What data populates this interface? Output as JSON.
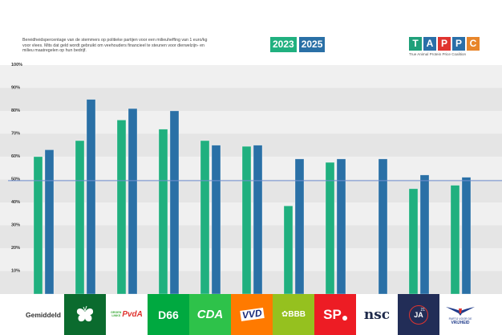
{
  "description": "Bereidheidspercentage van de stemmers op politieke partijen voor een milieuheffing van 1 euro/kg voor vlees. Mits dat geld wordt gebruikt om veehouders financieel te steunen voor dierwelzijn- en milieu maatregelen op hun bedrijf.",
  "brand": {
    "letters": [
      "T",
      "A",
      "P",
      "P",
      "C"
    ],
    "letter_colors": [
      "#20a07a",
      "#2a6fa8",
      "#e0342f",
      "#2a6fa8",
      "#e8862b"
    ],
    "subtitle": "True Animal Protein Price Coalition"
  },
  "logos": [
    {
      "name": "Gemiddeld",
      "label": "Gemiddeld",
      "bg": "#ffffff",
      "fg": "#333333"
    },
    {
      "name": "ChristenUnie",
      "label": "",
      "bg": "#0b6b2e",
      "fg": "#ffffff"
    },
    {
      "name": "GroenLinks-PvdA",
      "label_top": "GROEN",
      "label_bottom": "LINKS",
      "label_right": "PvdA",
      "bg": "#ffffff",
      "fg": "#e0342f"
    },
    {
      "name": "D66",
      "label": "D66",
      "bg": "#00a940",
      "fg": "#ffffff"
    },
    {
      "name": "CDA",
      "label": "CDA",
      "bg": "#2ec24a",
      "fg": "#ffffff"
    },
    {
      "name": "VVD",
      "label": "VVD",
      "bg": "#ff7a00",
      "fg": "#1a2b7a"
    },
    {
      "name": "BBB",
      "label": "BBB",
      "bg": "#95c11f",
      "fg": "#ffffff"
    },
    {
      "name": "SP",
      "label": "SP",
      "bg": "#ed1c24",
      "fg": "#ffffff"
    },
    {
      "name": "NSC",
      "label": "nsc",
      "bg": "#ffffff",
      "fg": "#1e2a4a"
    },
    {
      "name": "JA21",
      "label": "JA",
      "sup": "21",
      "bg": "#222d57",
      "fg": "#ffffff"
    },
    {
      "name": "PVV",
      "label_top": "PARTIJ VOOR DE",
      "label_bottom": "VRIJHEID",
      "bg": "#ffffff",
      "fg": "#1e3a8a"
    }
  ],
  "chart_data": {
    "type": "bar",
    "title": "",
    "xlabel": "",
    "ylabel": "",
    "ylim": [
      0,
      100
    ],
    "yticks": [
      "10%",
      "20%",
      "30%",
      "40%",
      "50%",
      "60%",
      "70%",
      "80%",
      "90%",
      "100%"
    ],
    "categories": [
      "Gemiddeld",
      "ChristenUnie",
      "GroenLinks-PvdA",
      "D66",
      "CDA",
      "VVD",
      "BBB",
      "SP",
      "NSC",
      "JA21",
      "PVV"
    ],
    "series": [
      {
        "name": "2023",
        "color": "#20b07f",
        "values": [
          60,
          67,
          76,
          72,
          67,
          64.5,
          38.5,
          57.5,
          null,
          46,
          47.5
        ]
      },
      {
        "name": "2025",
        "color": "#2a70a6",
        "values": [
          63,
          85,
          81,
          80,
          65,
          65,
          59,
          59,
          59,
          52,
          51
        ]
      }
    ],
    "reference_line": {
      "value": 49.5,
      "color": "#6f8fcf"
    },
    "legend": "top-center",
    "grid": "alternating bands"
  }
}
